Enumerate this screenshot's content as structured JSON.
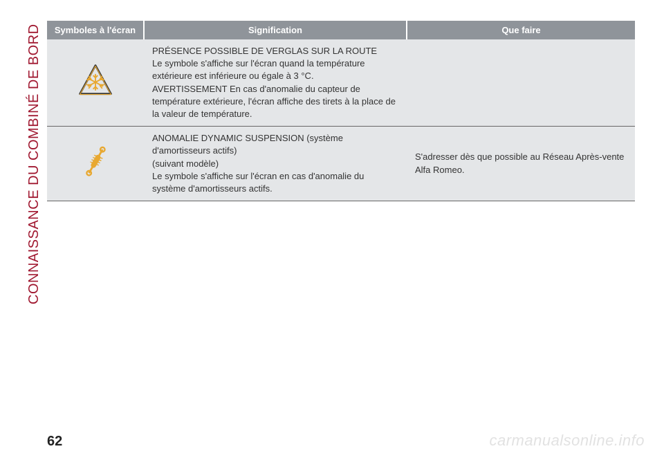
{
  "sidebar": {
    "title": "CONNAISSANCE DU COMBINÉ DE BORD"
  },
  "table": {
    "headers": {
      "symbol": "Symboles à l'écran",
      "signification": "Signification",
      "action": "Que faire"
    },
    "rows": [
      {
        "icon": "ice-warning",
        "sig_title": "PRÉSENCE POSSIBLE DE VERGLAS SUR LA ROUTE",
        "sig_body": "Le symbole s'affiche sur l'écran quand la température extérieure est inférieure ou égale à 3 °C.\nAVERTISSEMENT En cas d'anomalie du capteur de température extérieure, l'écran affiche des tirets à la place de la valeur de température.",
        "action": ""
      },
      {
        "icon": "shock-absorber",
        "sig_title": "ANOMALIE DYNAMIC SUSPENSION (système d'amortisseurs actifs)",
        "sig_sub": "(suivant modèle)",
        "sig_body": "Le symbole s'affiche sur l'écran en cas d'anomalie du système d'amortisseurs actifs.",
        "action": "S'adresser dès que possible au Réseau Après-vente Alfa Romeo."
      }
    ]
  },
  "page_number": "62",
  "watermark": "carmanualsonline.info",
  "colors": {
    "accent": "#a01830",
    "header_bg": "#8f949a",
    "cell_bg": "#e4e6e8",
    "icon_yellow": "#e8a830",
    "icon_dark": "#3a3a3a"
  }
}
